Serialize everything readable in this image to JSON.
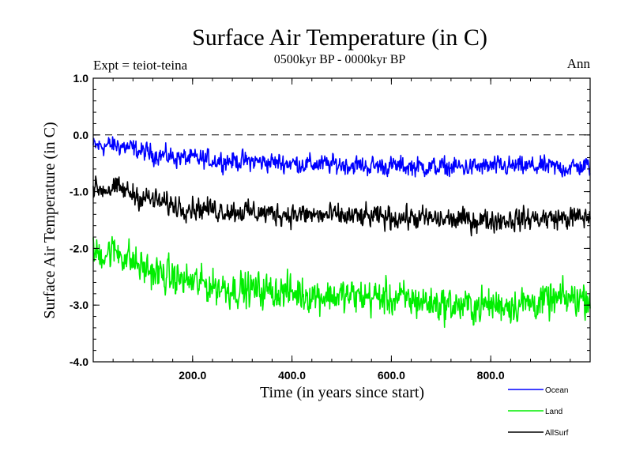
{
  "chart_data": {
    "type": "line",
    "title": "Surface Air Temperature (in C)",
    "subtitle": "0500kyr BP - 0000kyr BP",
    "experiment_label": "Expt = teiot-teina",
    "season_label": "Ann",
    "xlabel": "Time (in years since start)",
    "ylabel": "Surface Air Temperature (in C)",
    "xlim": [
      0,
      1000
    ],
    "ylim": [
      -4.0,
      1.0
    ],
    "x_ticks": [
      {
        "value": 200,
        "label": "200.0"
      },
      {
        "value": 400,
        "label": "400.0"
      },
      {
        "value": 600,
        "label": "600.0"
      },
      {
        "value": 800,
        "label": "800.0"
      }
    ],
    "y_ticks": [
      {
        "value": 1.0,
        "label": "1.0"
      },
      {
        "value": 0.0,
        "label": "0.0"
      },
      {
        "value": -1.0,
        "label": "-1.0"
      },
      {
        "value": -2.0,
        "label": "-2.0"
      },
      {
        "value": -3.0,
        "label": "-3.0"
      },
      {
        "value": -4.0,
        "label": "-4.0"
      }
    ],
    "reference_line": 0.0,
    "series": [
      {
        "name": "Ocean",
        "color": "#0000ff",
        "x": [
          0,
          50,
          100,
          150,
          200,
          250,
          300,
          350,
          400,
          450,
          500,
          550,
          600,
          650,
          700,
          750,
          800,
          850,
          900,
          950,
          1000
        ],
        "values": [
          -0.2,
          -0.18,
          -0.3,
          -0.38,
          -0.42,
          -0.45,
          -0.46,
          -0.48,
          -0.5,
          -0.52,
          -0.52,
          -0.55,
          -0.55,
          -0.56,
          -0.57,
          -0.57,
          -0.56,
          -0.56,
          -0.56,
          -0.58,
          -0.55
        ]
      },
      {
        "name": "Land",
        "color": "#00ee00",
        "x": [
          0,
          50,
          100,
          150,
          200,
          250,
          300,
          350,
          400,
          450,
          500,
          550,
          600,
          650,
          700,
          750,
          800,
          850,
          900,
          950,
          1000
        ],
        "values": [
          -2.1,
          -2.05,
          -2.35,
          -2.5,
          -2.6,
          -2.68,
          -2.72,
          -2.75,
          -2.78,
          -2.82,
          -2.85,
          -2.85,
          -2.88,
          -2.92,
          -2.98,
          -3.02,
          -3.0,
          -2.98,
          -2.95,
          -2.9,
          -2.85
        ]
      },
      {
        "name": "AllSurf",
        "color": "#000000",
        "x": [
          0,
          50,
          100,
          150,
          200,
          250,
          300,
          350,
          400,
          450,
          500,
          550,
          600,
          650,
          700,
          750,
          800,
          850,
          900,
          950,
          1000
        ],
        "values": [
          -0.95,
          -0.95,
          -1.1,
          -1.22,
          -1.28,
          -1.32,
          -1.35,
          -1.38,
          -1.4,
          -1.42,
          -1.43,
          -1.45,
          -1.45,
          -1.47,
          -1.49,
          -1.5,
          -1.5,
          -1.49,
          -1.47,
          -1.47,
          -1.45
        ]
      }
    ]
  }
}
